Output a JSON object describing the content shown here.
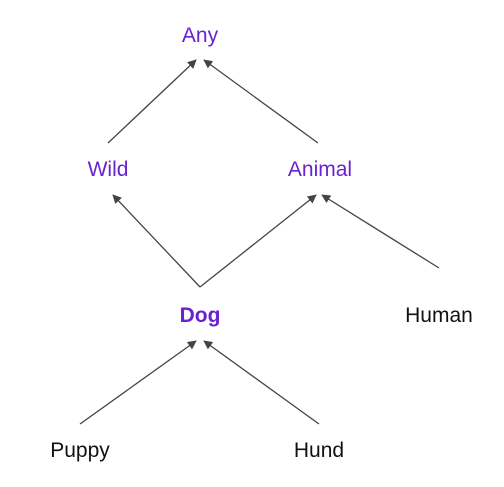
{
  "colors": {
    "background": "#ffffff",
    "highlight": "#6a22d0",
    "text": "#111111",
    "edge": "#444444"
  },
  "nodes": [
    {
      "id": "any",
      "label": "Any",
      "style": "highlight"
    },
    {
      "id": "wild",
      "label": "Wild",
      "style": "highlight"
    },
    {
      "id": "animal",
      "label": "Animal",
      "style": "highlight"
    },
    {
      "id": "dog",
      "label": "Dog",
      "style": "highlight-bold"
    },
    {
      "id": "human",
      "label": "Human",
      "style": "plain"
    },
    {
      "id": "puppy",
      "label": "Puppy",
      "style": "plain"
    },
    {
      "id": "hund",
      "label": "Hund",
      "style": "plain"
    }
  ],
  "edges": [
    {
      "from": "wild",
      "to": "any"
    },
    {
      "from": "animal",
      "to": "any"
    },
    {
      "from": "dog",
      "to": "wild"
    },
    {
      "from": "dog",
      "to": "animal"
    },
    {
      "from": "human",
      "to": "animal"
    },
    {
      "from": "puppy",
      "to": "dog"
    },
    {
      "from": "hund",
      "to": "dog"
    }
  ]
}
